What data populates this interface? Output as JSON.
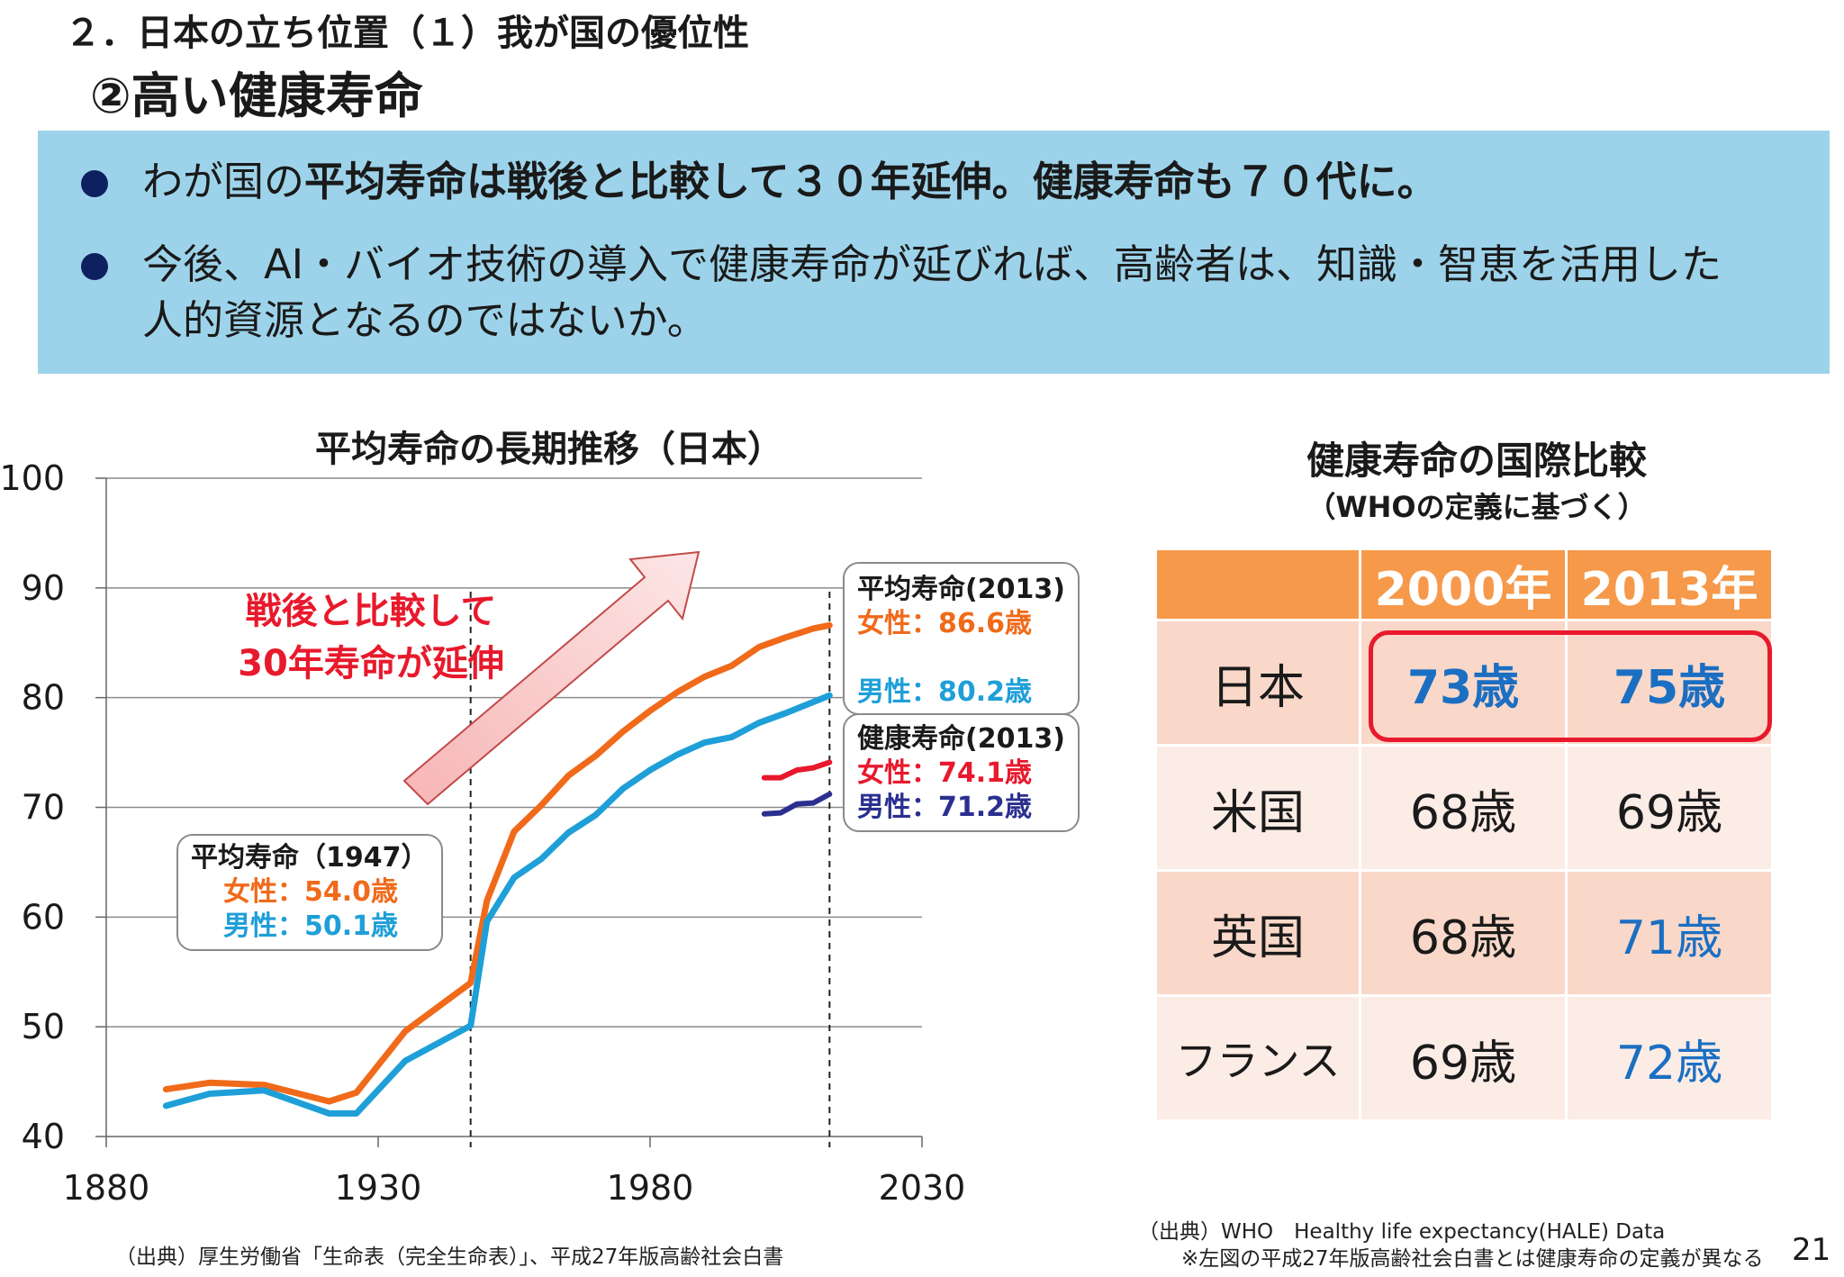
{
  "header": {
    "section_title": "２．日本の立ち位置（１）我が国の優位性",
    "main_title": "②高い健康寿命"
  },
  "summary": {
    "bullet1_pre": "わが国の",
    "bullet1_bold": "平均寿命は戦後と比較して３０年延伸。健康寿命も７０代に。",
    "bullet2_line1": "今後、AI・バイオ技術の導入で健康寿命が延びれば、高齢者は、知識・智恵を活用した",
    "bullet2_line2": "人的資源となるのではないか。"
  },
  "chart_data": {
    "type": "line",
    "title": "平均寿命の長期推移（日本）",
    "xlim": [
      1880,
      2030
    ],
    "ylim": [
      40,
      100
    ],
    "x_ticks": [
      1880,
      1930,
      1980,
      2030
    ],
    "y_ticks": [
      40,
      50,
      60,
      70,
      80,
      90,
      100
    ],
    "grid": "horizontal",
    "reference_years": [
      1947,
      2013
    ],
    "series": [
      {
        "color": "#f06a1a",
        "points": [
          [
            1891,
            44.3
          ],
          [
            1899,
            44.9
          ],
          [
            1909,
            44.7
          ],
          [
            1921,
            43.2
          ],
          [
            1926,
            44.0
          ],
          [
            1935,
            49.6
          ],
          [
            1947,
            54.0
          ],
          [
            1950,
            61.5
          ],
          [
            1955,
            67.8
          ],
          [
            1960,
            70.2
          ],
          [
            1965,
            72.9
          ],
          [
            1970,
            74.7
          ],
          [
            1975,
            76.9
          ],
          [
            1980,
            78.8
          ],
          [
            1985,
            80.5
          ],
          [
            1990,
            81.9
          ],
          [
            1995,
            82.9
          ],
          [
            2000,
            84.6
          ],
          [
            2005,
            85.5
          ],
          [
            2010,
            86.3
          ],
          [
            2013,
            86.6
          ]
        ]
      },
      {
        "color": "#1e9fd8",
        "points": [
          [
            1891,
            42.8
          ],
          [
            1899,
            43.9
          ],
          [
            1909,
            44.2
          ],
          [
            1921,
            42.1
          ],
          [
            1926,
            42.1
          ],
          [
            1935,
            46.9
          ],
          [
            1947,
            50.1
          ],
          [
            1950,
            59.6
          ],
          [
            1955,
            63.6
          ],
          [
            1960,
            65.3
          ],
          [
            1965,
            67.7
          ],
          [
            1970,
            69.3
          ],
          [
            1975,
            71.7
          ],
          [
            1980,
            73.4
          ],
          [
            1985,
            74.8
          ],
          [
            1990,
            75.9
          ],
          [
            1995,
            76.4
          ],
          [
            2000,
            77.7
          ],
          [
            2005,
            78.6
          ],
          [
            2010,
            79.6
          ],
          [
            2013,
            80.2
          ]
        ]
      },
      {
        "color": "#e8192c",
        "points": [
          [
            2001,
            72.7
          ],
          [
            2004,
            72.7
          ],
          [
            2007,
            73.4
          ],
          [
            2010,
            73.6
          ],
          [
            2013,
            74.1
          ]
        ]
      },
      {
        "color": "#2b2f8f",
        "points": [
          [
            2001,
            69.4
          ],
          [
            2004,
            69.5
          ],
          [
            2007,
            70.3
          ],
          [
            2010,
            70.4
          ],
          [
            2013,
            71.2
          ]
        ]
      }
    ],
    "annotations": {
      "arrow_text_line1": "戦後と比較して",
      "arrow_text_line2": "30年寿命が延伸",
      "box_1947_title": "平均寿命（1947）",
      "box_1947_female": "女性：54.0歳",
      "box_1947_male": "男性：50.1歳",
      "box_avg2013_title": "平均寿命(2013)",
      "box_avg2013_female": "女性：86.6歳",
      "box_avg2013_male": "男性：80.2歳",
      "box_hale2013_title": "健康寿命(2013)",
      "box_hale2013_female": "女性：74.1歳",
      "box_hale2013_male": "男性：71.2歳"
    }
  },
  "comparison": {
    "title": "健康寿命の国際比較",
    "subtitle": "（WHOの定義に基づく）",
    "columns": [
      "2000年",
      "2013年"
    ],
    "rows": [
      {
        "country": "日本",
        "v2000": "73歳",
        "v2013": "75歳",
        "color2000": "#1b6fc2",
        "color2013": "#1b6fc2"
      },
      {
        "country": "米国",
        "v2000": "68歳",
        "v2013": "69歳",
        "color2000": "#1a1a1a",
        "color2013": "#1a1a1a"
      },
      {
        "country": "英国",
        "v2000": "68歳",
        "v2013": "71歳",
        "color2000": "#1a1a1a",
        "color2013": "#1b6fc2"
      },
      {
        "country": "フランス",
        "v2000": "69歳",
        "v2013": "72歳",
        "color2000": "#1a1a1a",
        "color2013": "#1b6fc2"
      }
    ]
  },
  "footer": {
    "source_left": "（出典）厚生労働省「生命表（完全生命表）」、平成27年版高齢社会白書",
    "source_right_1": "（出典）WHO　Healthy life expectancy(HALE) Data",
    "source_right_2": "※左図の平成27年版高齢社会白書とは健康寿命の定義が異なる",
    "page_number": "21"
  },
  "colors": {
    "female": "#f06a1a",
    "male": "#1e9fd8",
    "hale_female": "#e8192c",
    "hale_male": "#2b2f8f",
    "arrow_text": "#e8192c",
    "banner": "#9dd3ea",
    "table_header": "#f6994a"
  }
}
